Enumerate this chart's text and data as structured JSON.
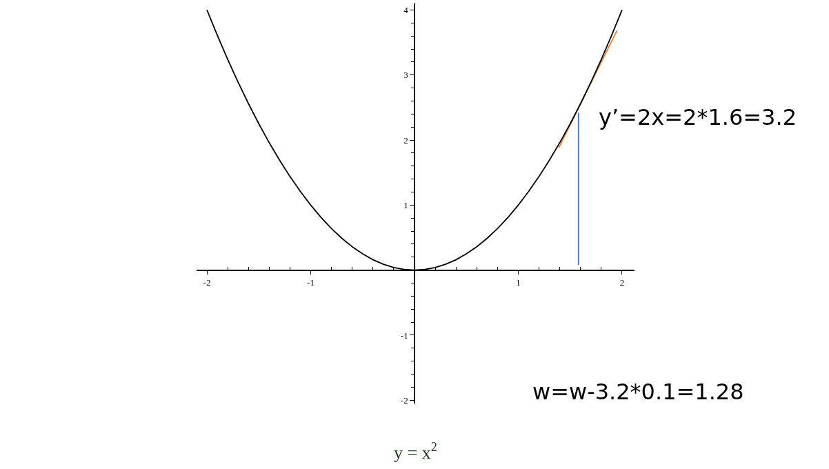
{
  "chart_data": {
    "type": "line",
    "title": "y = x$^{2}$",
    "annotations": [
      "y’=2x=2*1.6=3.2",
      "w=w-3.2*0.1=1.28"
    ],
    "xlim": [
      -2.1,
      2.12
    ],
    "ylim": [
      -2.05,
      4.1
    ],
    "xticks": [
      -2,
      {
        "value": -1.8,
        "label": null
      },
      {
        "value": -1.6,
        "label": null
      },
      {
        "value": -1.4,
        "label": null
      },
      {
        "value": -1.2,
        "label": null
      },
      -1,
      {
        "value": -0.8,
        "label": null
      },
      {
        "value": -0.6,
        "label": null
      },
      {
        "value": -0.4,
        "label": null
      },
      {
        "value": -0.2,
        "label": null
      },
      {
        "value": 0.2,
        "label": null
      },
      {
        "value": 0.4,
        "label": null
      },
      {
        "value": 0.6,
        "label": null
      },
      {
        "value": 0.8,
        "label": null
      },
      1,
      {
        "value": 1.2,
        "label": null
      },
      {
        "value": 1.4,
        "label": null
      },
      {
        "value": 1.6,
        "label": null
      },
      {
        "value": 1.8,
        "label": null
      },
      2
    ],
    "yticks": [
      -2,
      {
        "value": -1.8,
        "label": null
      },
      {
        "value": -1.6,
        "label": null
      },
      {
        "value": -1.4,
        "label": null
      },
      {
        "value": -1.2,
        "label": null
      },
      -1,
      {
        "value": -0.8,
        "label": null
      },
      {
        "value": -0.6,
        "label": null
      },
      {
        "value": -0.4,
        "label": null
      },
      {
        "value": -0.2,
        "label": null
      },
      {
        "value": 0.2,
        "label": null
      },
      {
        "value": 0.4,
        "label": null
      },
      {
        "value": 0.6,
        "label": null
      },
      {
        "value": 0.8,
        "label": null
      },
      1,
      {
        "value": 1.2,
        "label": null
      },
      {
        "value": 1.4,
        "label": null
      },
      {
        "value": 1.6,
        "label": null
      },
      {
        "value": 1.8,
        "label": null
      },
      2,
      {
        "value": 2.2,
        "label": null
      },
      {
        "value": 2.4,
        "label": null
      },
      {
        "value": 2.6,
        "label": null
      },
      {
        "value": 2.8,
        "label": null
      },
      3,
      {
        "value": 3.2,
        "label": null
      },
      {
        "value": 3.4,
        "label": null
      },
      {
        "value": 3.6,
        "label": null
      },
      {
        "value": 3.8,
        "label": null
      },
      4
    ],
    "marker": "none",
    "line_style": "solid",
    "series": [
      {
        "color": "#000000",
        "x": [
          -2,
          -1.9,
          -1.8,
          -1.7,
          -1.6,
          -1.5,
          -1.4,
          -1.3,
          -1.2,
          -1.1,
          -1,
          -0.9,
          -0.8,
          -0.7,
          -0.6,
          -0.5,
          -0.4,
          -0.3,
          -0.2,
          -0.1,
          0,
          0.1,
          0.2,
          0.3,
          0.4,
          0.5,
          0.6,
          0.7,
          0.8,
          0.9,
          1,
          1.1,
          1.2,
          1.3,
          1.4,
          1.5,
          1.6,
          1.7,
          1.8,
          1.9,
          2
        ],
        "values": [
          4,
          3.61,
          3.24,
          2.89,
          2.56,
          2.25,
          1.96,
          1.69,
          1.44,
          1.21,
          1,
          0.81,
          0.64,
          0.49,
          0.36,
          0.25,
          0.16,
          0.09,
          0.04,
          0.01,
          0,
          0.01,
          0.04,
          0.09,
          0.16,
          0.25,
          0.36,
          0.49,
          0.64,
          0.81,
          1,
          1.21,
          1.44,
          1.69,
          1.96,
          2.25,
          2.56,
          2.89,
          3.24,
          3.61,
          4
        ]
      },
      {
        "color": "#ed7d31",
        "x": [
          1.39,
          1.95
        ],
        "values": [
          1.88,
          3.68
        ]
      },
      {
        "color": "#4472c4",
        "x": [
          1.58,
          1.58
        ],
        "values": [
          0.08,
          2.42
        ]
      }
    ]
  }
}
